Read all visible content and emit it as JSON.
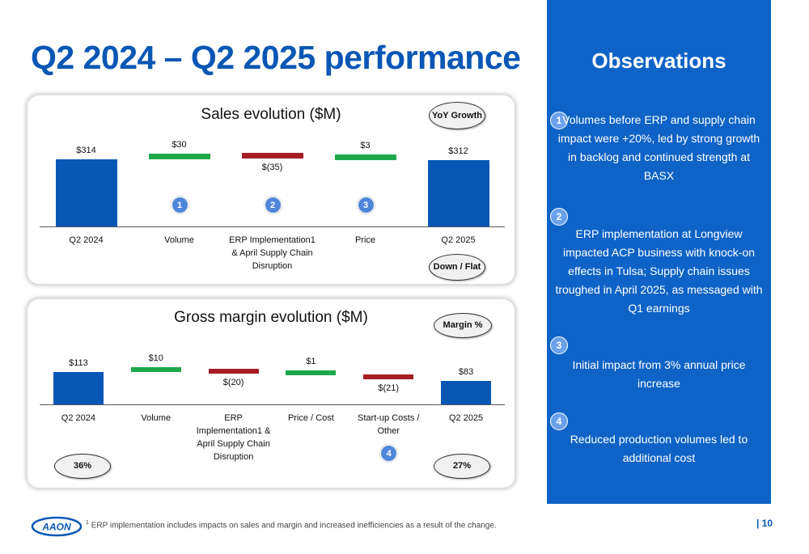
{
  "page": {
    "title": "Q2 2024 – Q2 2025 performance",
    "footnote_marker": "1",
    "footnote": "ERP implementation includes impacts on sales and margin and increased inefficiencies as a result of the change.",
    "page_number": "| 10",
    "logo_text": "AAON"
  },
  "sales": {
    "title": "Sales evolution ($M)",
    "pill_top": "YoY Growth",
    "pill_bottom": "Down / Flat"
  },
  "margin": {
    "title": "Gross margin evolution ($M)",
    "pill_top": "Margin %",
    "pill_left": "36%",
    "pill_right": "27%"
  },
  "chart_data": [
    {
      "type": "bar",
      "subtype": "waterfall",
      "title": "Sales evolution ($M)",
      "categories": [
        "Q2 2024",
        "Volume",
        "ERP Implementation1& April Supply Chain Disruption",
        "Price",
        "Q2 2025"
      ],
      "values": [
        314,
        30,
        -35,
        3,
        312
      ],
      "value_labels": [
        "$314",
        "$30",
        "$(35)",
        "$3",
        "$312"
      ],
      "kinds": [
        "total",
        "delta",
        "delta",
        "delta",
        "total"
      ],
      "colors": [
        "#0857b5",
        "#1ea84a",
        "#a51d24",
        "#1ea84a",
        "#0857b5"
      ],
      "badges": [
        "",
        "1",
        "2",
        "3",
        ""
      ]
    },
    {
      "type": "bar",
      "subtype": "waterfall",
      "title": "Gross margin evolution ($M)",
      "categories": [
        "Q2 2024",
        "Volume",
        "ERP Implementation1 & April Supply Chain Disruption",
        "Price / Cost",
        "Start-up Costs / Other",
        "Q2 2025"
      ],
      "values": [
        113,
        10,
        -20,
        1,
        -21,
        83
      ],
      "value_labels": [
        "$113",
        "$10",
        "$(20)",
        "$1",
        "$(21)",
        "$83"
      ],
      "kinds": [
        "total",
        "delta",
        "delta",
        "delta",
        "delta",
        "total"
      ],
      "colors": [
        "#0857b5",
        "#1ea84a",
        "#a51d24",
        "#1ea84a",
        "#a51d24",
        "#0857b5"
      ],
      "badges": [
        "",
        "",
        "",
        "",
        "4",
        ""
      ]
    }
  ],
  "observations": {
    "title": "Observations",
    "items": [
      {
        "num": "1",
        "text": "Volumes before ERP and supply chain impact were +20%, led by strong growth in backlog and continued strength at BASX"
      },
      {
        "num": "2",
        "text": "ERP implementation at Longview impacted ACP business with knock-on effects in Tulsa; Supply chain issues troughed in April 2025, as messaged with Q1 earnings"
      },
      {
        "num": "3",
        "text": "Initial impact from 3% annual price increase"
      },
      {
        "num": "4",
        "text": "Reduced production volumes led to additional cost"
      }
    ]
  }
}
